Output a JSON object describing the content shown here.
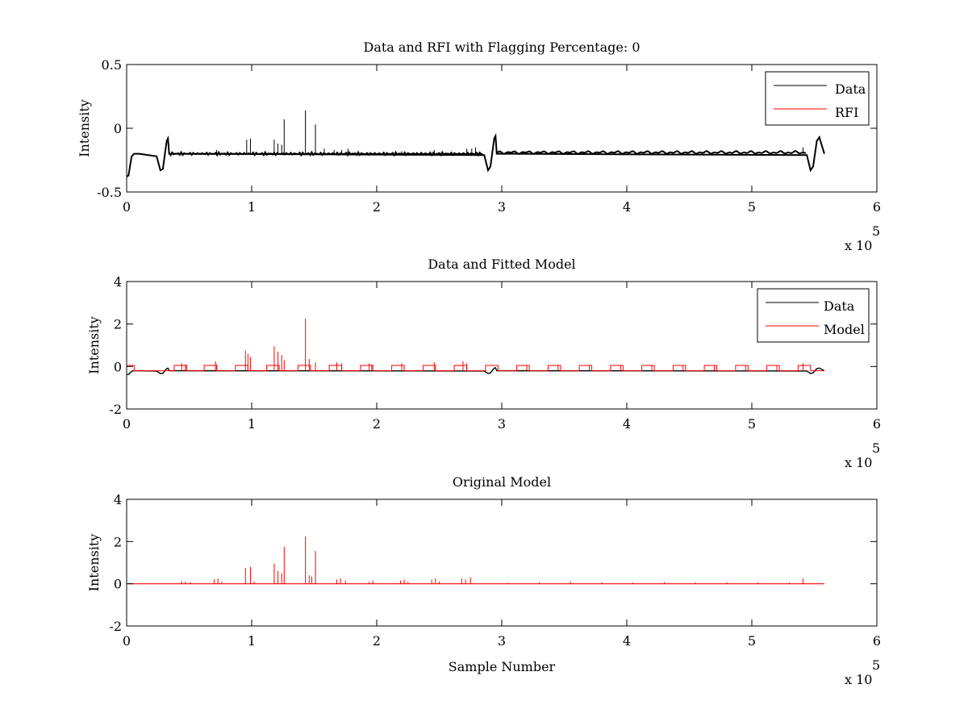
{
  "chart_data": [
    {
      "type": "line",
      "title": "Data and RFI with Flagging Percentage: 0",
      "xlabel": "",
      "ylabel": "Intensity",
      "xlim": [
        0,
        600000
      ],
      "ylim": [
        -0.5,
        0.5
      ],
      "xticks": [
        0,
        100000,
        200000,
        300000,
        400000,
        500000,
        600000
      ],
      "xtick_labels": [
        "0",
        "1",
        "2",
        "3",
        "4",
        "5",
        "6"
      ],
      "yticks": [
        -0.5,
        0,
        0.5
      ],
      "ytick_labels": [
        "-0.5",
        "0",
        "0.5"
      ],
      "x_multiplier": {
        "base": "x 10",
        "exponent": "5"
      },
      "legend": {
        "position": "top-right",
        "entries": [
          "Data",
          "RFI"
        ]
      },
      "series": [
        {
          "name": "Data",
          "color": "#000000",
          "baseline": -0.2,
          "x": [
            0,
            1500,
            4000,
            6000,
            10000,
            24000,
            27000,
            29000,
            32000,
            33000,
            34000,
            286000,
            289000,
            291000,
            294000,
            295000,
            296000,
            544000,
            547000,
            549000,
            552000,
            554000,
            558000
          ],
          "y": [
            -0.38,
            -0.37,
            -0.22,
            -0.2,
            -0.2,
            -0.22,
            -0.33,
            -0.32,
            -0.1,
            -0.08,
            -0.2,
            -0.21,
            -0.33,
            -0.3,
            -0.08,
            -0.06,
            -0.2,
            -0.21,
            -0.33,
            -0.3,
            -0.1,
            -0.07,
            -0.2
          ],
          "spikes": [
            {
              "x": 96000,
              "y": -0.09
            },
            {
              "x": 99000,
              "y": -0.08
            },
            {
              "x": 118000,
              "y": -0.09
            },
            {
              "x": 121000,
              "y": -0.12
            },
            {
              "x": 124000,
              "y": -0.13
            },
            {
              "x": 126000,
              "y": 0.07
            },
            {
              "x": 143000,
              "y": 0.14
            },
            {
              "x": 151000,
              "y": 0.03
            },
            {
              "x": 158000,
              "y": -0.16
            },
            {
              "x": 166000,
              "y": -0.17
            },
            {
              "x": 172000,
              "y": -0.17
            },
            {
              "x": 177000,
              "y": -0.16
            },
            {
              "x": 220000,
              "y": -0.18
            },
            {
              "x": 246000,
              "y": -0.17
            },
            {
              "x": 272000,
              "y": -0.16
            },
            {
              "x": 276000,
              "y": -0.16
            },
            {
              "x": 279000,
              "y": -0.15
            },
            {
              "x": 72000,
              "y": -0.17
            },
            {
              "x": 541000,
              "y": -0.15
            }
          ]
        },
        {
          "name": "RFI",
          "color": "#ff0000",
          "x": [],
          "y": []
        }
      ]
    },
    {
      "type": "line",
      "title": "Data and Fitted Model",
      "xlabel": "",
      "ylabel": "Intensity",
      "xlim": [
        0,
        600000
      ],
      "ylim": [
        -2,
        4
      ],
      "xticks": [
        0,
        100000,
        200000,
        300000,
        400000,
        500000,
        600000
      ],
      "xtick_labels": [
        "0",
        "1",
        "2",
        "3",
        "4",
        "5",
        "6"
      ],
      "yticks": [
        -2,
        0,
        2,
        4
      ],
      "ytick_labels": [
        "-2",
        "0",
        "2",
        "4"
      ],
      "x_multiplier": {
        "base": "x 10",
        "exponent": "5"
      },
      "legend": {
        "position": "top-right",
        "entries": [
          "Data",
          "Model"
        ]
      },
      "series": [
        {
          "name": "Data",
          "color": "#000000",
          "x": [
            0,
            1500,
            4000,
            6000,
            10000,
            24000,
            27000,
            29000,
            32000,
            33000,
            34000,
            286000,
            289000,
            291000,
            294000,
            295000,
            296000,
            544000,
            547000,
            549000,
            552000,
            554000,
            558000
          ],
          "y": [
            -0.38,
            -0.37,
            -0.22,
            -0.2,
            -0.2,
            -0.22,
            -0.33,
            -0.32,
            -0.1,
            -0.08,
            -0.2,
            -0.21,
            -0.33,
            -0.3,
            -0.08,
            -0.06,
            -0.2,
            -0.21,
            -0.33,
            -0.3,
            -0.1,
            -0.07,
            -0.2
          ]
        },
        {
          "name": "Model",
          "color": "#ff0000",
          "baseline": -0.2,
          "box_level": 0.05,
          "boxes": [
            [
              0,
              6000
            ],
            [
              38000,
              48000
            ],
            [
              62000,
              72000
            ],
            [
              87000,
              97000
            ],
            [
              112000,
              122000
            ],
            [
              137000,
              147000
            ],
            [
              162000,
              172000
            ],
            [
              187000,
              197000
            ],
            [
              212000,
              222000
            ],
            [
              237000,
              247000
            ],
            [
              262000,
              272000
            ],
            [
              287000,
              297000
            ],
            [
              312000,
              322000
            ],
            [
              337000,
              347000
            ],
            [
              362000,
              372000
            ],
            [
              387000,
              397000
            ],
            [
              412000,
              422000
            ],
            [
              437000,
              447000
            ],
            [
              462000,
              472000
            ],
            [
              487000,
              497000
            ],
            [
              512000,
              522000
            ],
            [
              537000,
              547000
            ]
          ],
          "spikes": [
            {
              "x": 44000,
              "y": 0.15
            },
            {
              "x": 47000,
              "y": 0.1
            },
            {
              "x": 71000,
              "y": 0.25
            },
            {
              "x": 72000,
              "y": 0.1
            },
            {
              "x": 95000,
              "y": 0.75
            },
            {
              "x": 97000,
              "y": 0.6
            },
            {
              "x": 99000,
              "y": 0.45
            },
            {
              "x": 118000,
              "y": 0.95
            },
            {
              "x": 121000,
              "y": 0.7
            },
            {
              "x": 124000,
              "y": 0.55
            },
            {
              "x": 126000,
              "y": 0.3
            },
            {
              "x": 143000,
              "y": 2.25
            },
            {
              "x": 146000,
              "y": 0.35
            },
            {
              "x": 151000,
              "y": 0.2
            },
            {
              "x": 168000,
              "y": 0.2
            },
            {
              "x": 172000,
              "y": 0.15
            },
            {
              "x": 194000,
              "y": 0.15
            },
            {
              "x": 196000,
              "y": 0.1
            },
            {
              "x": 220000,
              "y": 0.15
            },
            {
              "x": 246000,
              "y": 0.2
            },
            {
              "x": 269000,
              "y": 0.25
            },
            {
              "x": 272000,
              "y": 0.15
            },
            {
              "x": 320000,
              "y": 0.05
            },
            {
              "x": 345000,
              "y": 0.08
            },
            {
              "x": 370000,
              "y": 0.08
            },
            {
              "x": 395000,
              "y": 0.05
            },
            {
              "x": 420000,
              "y": 0.05
            },
            {
              "x": 445000,
              "y": 0.05
            },
            {
              "x": 470000,
              "y": 0.05
            },
            {
              "x": 495000,
              "y": 0.05
            },
            {
              "x": 520000,
              "y": 0.05
            },
            {
              "x": 541000,
              "y": 0.15
            }
          ]
        }
      ]
    },
    {
      "type": "line",
      "title": "Original Model",
      "xlabel": "Sample Number",
      "ylabel": "Intensity",
      "xlim": [
        0,
        600000
      ],
      "ylim": [
        -2,
        4
      ],
      "xticks": [
        0,
        100000,
        200000,
        300000,
        400000,
        500000,
        600000
      ],
      "xtick_labels": [
        "0",
        "1",
        "2",
        "3",
        "4",
        "5",
        "6"
      ],
      "yticks": [
        -2,
        0,
        2,
        4
      ],
      "ytick_labels": [
        "-2",
        "0",
        "2",
        "4"
      ],
      "x_multiplier": {
        "base": "x 10",
        "exponent": "5"
      },
      "series": [
        {
          "name": "",
          "color": "#ff0000",
          "baseline": 0,
          "x_end": 558000,
          "spikes": [
            {
              "x": 44000,
              "y": 0.12
            },
            {
              "x": 47000,
              "y": 0.1
            },
            {
              "x": 51000,
              "y": 0.08
            },
            {
              "x": 70000,
              "y": 0.2
            },
            {
              "x": 73000,
              "y": 0.25
            },
            {
              "x": 76000,
              "y": 0.1
            },
            {
              "x": 95000,
              "y": 0.75
            },
            {
              "x": 99000,
              "y": 0.8
            },
            {
              "x": 102000,
              "y": 0.1
            },
            {
              "x": 118000,
              "y": 0.95
            },
            {
              "x": 121000,
              "y": 0.6
            },
            {
              "x": 124000,
              "y": 0.5
            },
            {
              "x": 126000,
              "y": 1.75
            },
            {
              "x": 143000,
              "y": 2.25
            },
            {
              "x": 146000,
              "y": 0.4
            },
            {
              "x": 148000,
              "y": 0.35
            },
            {
              "x": 151000,
              "y": 1.55
            },
            {
              "x": 168000,
              "y": 0.2
            },
            {
              "x": 171000,
              "y": 0.25
            },
            {
              "x": 175000,
              "y": 0.15
            },
            {
              "x": 194000,
              "y": 0.1
            },
            {
              "x": 197000,
              "y": 0.15
            },
            {
              "x": 219000,
              "y": 0.15
            },
            {
              "x": 222000,
              "y": 0.2
            },
            {
              "x": 225000,
              "y": 0.1
            },
            {
              "x": 244000,
              "y": 0.2
            },
            {
              "x": 247000,
              "y": 0.25
            },
            {
              "x": 250000,
              "y": 0.1
            },
            {
              "x": 268000,
              "y": 0.25
            },
            {
              "x": 271000,
              "y": 0.2
            },
            {
              "x": 275000,
              "y": 0.3
            },
            {
              "x": 305000,
              "y": 0.05
            },
            {
              "x": 330000,
              "y": 0.08
            },
            {
              "x": 355000,
              "y": 0.1
            },
            {
              "x": 380000,
              "y": 0.08
            },
            {
              "x": 405000,
              "y": 0.06
            },
            {
              "x": 430000,
              "y": 0.08
            },
            {
              "x": 455000,
              "y": 0.06
            },
            {
              "x": 480000,
              "y": 0.08
            },
            {
              "x": 505000,
              "y": 0.08
            },
            {
              "x": 530000,
              "y": 0.06
            },
            {
              "x": 541000,
              "y": 0.25
            }
          ]
        }
      ]
    }
  ]
}
